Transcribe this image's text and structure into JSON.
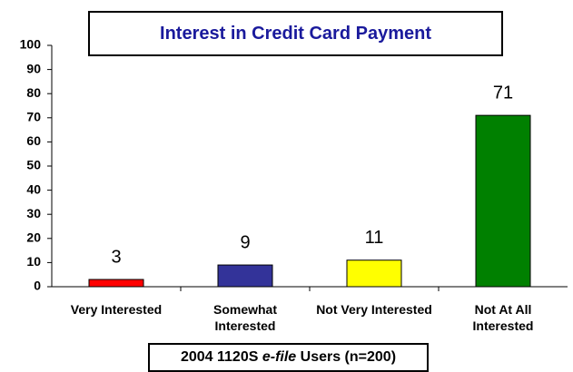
{
  "chart_data": {
    "type": "bar",
    "title": "Interest in Credit Card Payment",
    "x_label_parts": [
      "2004 1120S ",
      "e-file",
      " Users (n=200)"
    ],
    "categories": [
      "Very Interested",
      "Somewhat Interested",
      "Not Very Interested",
      "Not At All Interested"
    ],
    "values": [
      3,
      9,
      11,
      71
    ],
    "colors": [
      "#ff0000",
      "#333399",
      "#ffff00",
      "#008000"
    ],
    "ylim": [
      0,
      100
    ],
    "yticks": [
      0,
      10,
      20,
      30,
      40,
      50,
      60,
      70,
      80,
      90,
      100
    ],
    "grid": false
  }
}
